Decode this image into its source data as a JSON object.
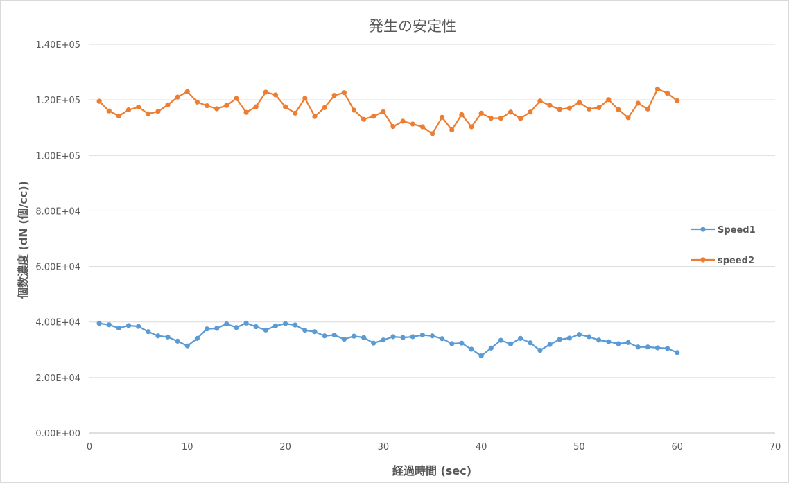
{
  "chart_data": {
    "type": "line",
    "title": "発生の安定性",
    "xlabel": "経過時間 (sec)",
    "ylabel": "個数濃度 (dN (個/cc))",
    "xlim": [
      0,
      70
    ],
    "ylim": [
      0,
      140000
    ],
    "x_ticks": [
      "0",
      "10",
      "20",
      "30",
      "40",
      "50",
      "60",
      "70"
    ],
    "y_ticks": [
      "0.00E+00",
      "2.00E+04",
      "4.00E+04",
      "6.00E+04",
      "8.00E+04",
      "1.00E+05",
      "1.20E+05",
      "1.40E+05"
    ],
    "grid": "horizontal",
    "legend_position": "right",
    "x": [
      1,
      2,
      3,
      4,
      5,
      6,
      7,
      8,
      9,
      10,
      11,
      12,
      13,
      14,
      15,
      16,
      17,
      18,
      19,
      20,
      21,
      22,
      23,
      24,
      25,
      26,
      27,
      28,
      29,
      30,
      31,
      32,
      33,
      34,
      35,
      36,
      37,
      38,
      39,
      40,
      41,
      42,
      43,
      44,
      45,
      46,
      47,
      48,
      49,
      50,
      51,
      52,
      53,
      54,
      55,
      56,
      57,
      58,
      59,
      60
    ],
    "series": [
      {
        "name": "Speed1",
        "color": "#5b9bd5",
        "values": [
          39500,
          39000,
          37800,
          38700,
          38400,
          36500,
          35000,
          34600,
          33100,
          31400,
          34100,
          37500,
          37700,
          39300,
          38000,
          39600,
          38300,
          37100,
          38600,
          39400,
          38900,
          37000,
          36500,
          35000,
          35300,
          33800,
          34900,
          34400,
          32400,
          33500,
          34700,
          34400,
          34700,
          35300,
          35000,
          34000,
          32200,
          32400,
          30200,
          27800,
          30600,
          33400,
          32100,
          34100,
          32500,
          29800,
          31900,
          33700,
          34200,
          35500,
          34700,
          33500,
          32900,
          32200,
          32600,
          31000,
          31000,
          30700,
          30500,
          29000
        ]
      },
      {
        "name": "speed2",
        "color": "#ed7d31",
        "values": [
          119500,
          116000,
          114200,
          116400,
          117400,
          115000,
          115800,
          118200,
          121000,
          123000,
          119200,
          117900,
          116800,
          118000,
          120500,
          115500,
          117500,
          122800,
          121800,
          117500,
          115200,
          120600,
          114000,
          117200,
          121600,
          122600,
          116300,
          113000,
          114100,
          115700,
          110400,
          112300,
          111300,
          110300,
          107800,
          113700,
          109200,
          114700,
          110300,
          115200,
          113400,
          113400,
          115600,
          113300,
          115600,
          119600,
          118000,
          116600,
          117000,
          119100,
          116700,
          117200,
          120100,
          116500,
          113600,
          118800,
          116700,
          123900,
          122400,
          119700
        ]
      }
    ]
  }
}
